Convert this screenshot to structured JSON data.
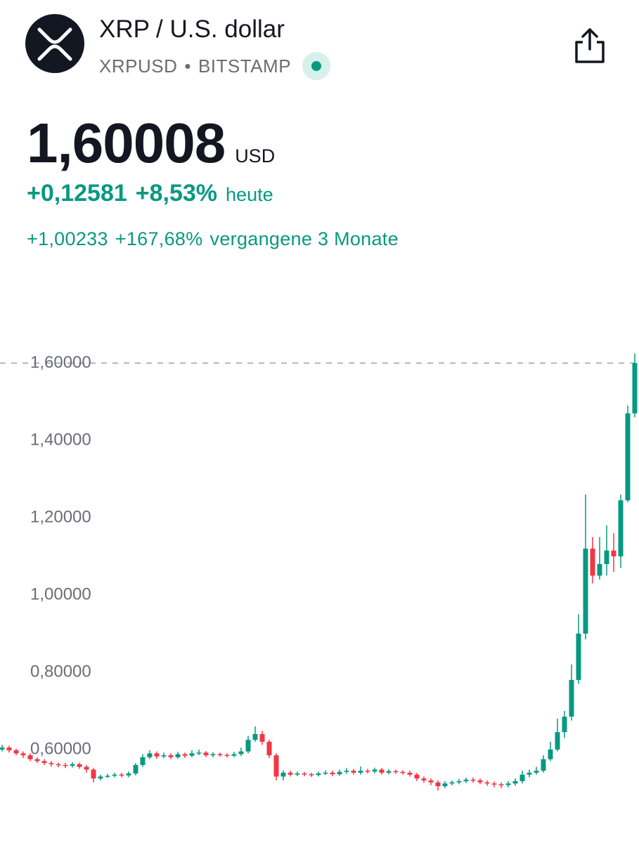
{
  "header": {
    "title": "XRP / U.S. dollar",
    "symbol": "XRPUSD",
    "separator": "•",
    "exchange": "BITSTAMP",
    "price": "1,60008",
    "currency": "USD",
    "change": "+0,12581",
    "change_percent": "+8,53%",
    "change_period": "heute",
    "period_change": "+1,00233",
    "period_change_percent": "+167,68%",
    "period_label": "vergangene 3 Monate"
  },
  "chart_data": {
    "type": "candlestick",
    "up_color": "#089981",
    "down_color": "#f23645",
    "ylim": [
      0.358,
      1.849
    ],
    "yticks": [
      {
        "value": 0.6,
        "label": "0,60000"
      },
      {
        "value": 0.8,
        "label": "0,80000"
      },
      {
        "value": 1.0,
        "label": "1,00000"
      },
      {
        "value": 1.2,
        "label": "1,20000"
      },
      {
        "value": 1.4,
        "label": "1,40000"
      },
      {
        "value": 1.6,
        "label": "1,60000"
      }
    ],
    "price_line": 1.60008,
    "open": [
      0.6,
      0.605,
      0.598,
      0.59,
      0.585,
      0.575,
      0.57,
      0.565,
      0.562,
      0.56,
      0.558,
      0.562,
      0.555,
      0.548,
      0.525,
      0.53,
      0.532,
      0.535,
      0.533,
      0.538,
      0.56,
      0.58,
      0.59,
      0.582,
      0.585,
      0.58,
      0.588,
      0.584,
      0.59,
      0.592,
      0.585,
      0.588,
      0.586,
      0.584,
      0.588,
      0.595,
      0.625,
      0.64,
      0.62,
      0.585,
      0.53,
      0.54,
      0.535,
      0.538,
      0.536,
      0.534,
      0.538,
      0.54,
      0.536,
      0.542,
      0.545,
      0.54,
      0.545,
      0.543,
      0.548,
      0.54,
      0.544,
      0.542,
      0.54,
      0.535,
      0.525,
      0.52,
      0.515,
      0.505,
      0.512,
      0.515,
      0.518,
      0.522,
      0.52,
      0.515,
      0.512,
      0.51,
      0.508,
      0.512,
      0.518,
      0.535,
      0.54,
      0.545,
      0.575,
      0.6,
      0.645,
      0.685,
      0.78,
      0.9,
      1.12,
      1.05,
      1.08,
      1.115,
      1.1,
      1.245,
      1.47
    ],
    "high": [
      0.612,
      0.61,
      0.602,
      0.595,
      0.59,
      0.58,
      0.575,
      0.57,
      0.566,
      0.565,
      0.567,
      0.566,
      0.56,
      0.552,
      0.535,
      0.537,
      0.54,
      0.54,
      0.543,
      0.565,
      0.588,
      0.598,
      0.595,
      0.592,
      0.59,
      0.594,
      0.592,
      0.598,
      0.6,
      0.596,
      0.593,
      0.592,
      0.59,
      0.594,
      0.605,
      0.635,
      0.66,
      0.648,
      0.625,
      0.59,
      0.546,
      0.545,
      0.543,
      0.542,
      0.54,
      0.543,
      0.546,
      0.545,
      0.548,
      0.552,
      0.55,
      0.556,
      0.55,
      0.553,
      0.552,
      0.549,
      0.548,
      0.546,
      0.545,
      0.54,
      0.53,
      0.525,
      0.52,
      0.518,
      0.52,
      0.524,
      0.527,
      0.527,
      0.525,
      0.52,
      0.517,
      0.515,
      0.518,
      0.525,
      0.545,
      0.548,
      0.555,
      0.585,
      0.62,
      0.68,
      0.7,
      0.82,
      0.95,
      1.26,
      1.15,
      1.15,
      1.18,
      1.16,
      1.26,
      1.49,
      1.625
    ],
    "low": [
      0.595,
      0.592,
      0.585,
      0.578,
      0.57,
      0.565,
      0.56,
      0.556,
      0.554,
      0.552,
      0.553,
      0.55,
      0.54,
      0.515,
      0.52,
      0.526,
      0.528,
      0.528,
      0.528,
      0.533,
      0.555,
      0.575,
      0.576,
      0.578,
      0.575,
      0.576,
      0.578,
      0.58,
      0.585,
      0.58,
      0.58,
      0.581,
      0.579,
      0.58,
      0.583,
      0.59,
      0.62,
      0.612,
      0.578,
      0.52,
      0.52,
      0.53,
      0.531,
      0.531,
      0.529,
      0.53,
      0.534,
      0.531,
      0.532,
      0.537,
      0.535,
      0.535,
      0.538,
      0.538,
      0.535,
      0.536,
      0.537,
      0.535,
      0.53,
      0.518,
      0.514,
      0.508,
      0.494,
      0.5,
      0.507,
      0.51,
      0.513,
      0.514,
      0.51,
      0.506,
      0.502,
      0.5,
      0.502,
      0.506,
      0.512,
      0.528,
      0.535,
      0.54,
      0.57,
      0.595,
      0.63,
      0.675,
      0.77,
      0.885,
      1.03,
      1.04,
      1.05,
      1.06,
      1.07,
      1.24,
      1.46
    ],
    "close": [
      0.605,
      0.598,
      0.59,
      0.585,
      0.575,
      0.57,
      0.565,
      0.562,
      0.56,
      0.558,
      0.562,
      0.555,
      0.548,
      0.525,
      0.53,
      0.532,
      0.535,
      0.533,
      0.538,
      0.56,
      0.58,
      0.59,
      0.582,
      0.585,
      0.58,
      0.588,
      0.584,
      0.59,
      0.592,
      0.585,
      0.588,
      0.586,
      0.584,
      0.588,
      0.595,
      0.625,
      0.64,
      0.62,
      0.585,
      0.53,
      0.54,
      0.535,
      0.538,
      0.536,
      0.534,
      0.538,
      0.54,
      0.536,
      0.542,
      0.545,
      0.54,
      0.545,
      0.543,
      0.548,
      0.54,
      0.544,
      0.542,
      0.54,
      0.535,
      0.525,
      0.52,
      0.515,
      0.505,
      0.512,
      0.515,
      0.518,
      0.522,
      0.52,
      0.515,
      0.512,
      0.51,
      0.508,
      0.512,
      0.518,
      0.535,
      0.54,
      0.545,
      0.575,
      0.6,
      0.645,
      0.685,
      0.78,
      0.9,
      1.12,
      1.05,
      1.08,
      1.115,
      1.1,
      1.245,
      1.47,
      1.6
    ]
  }
}
